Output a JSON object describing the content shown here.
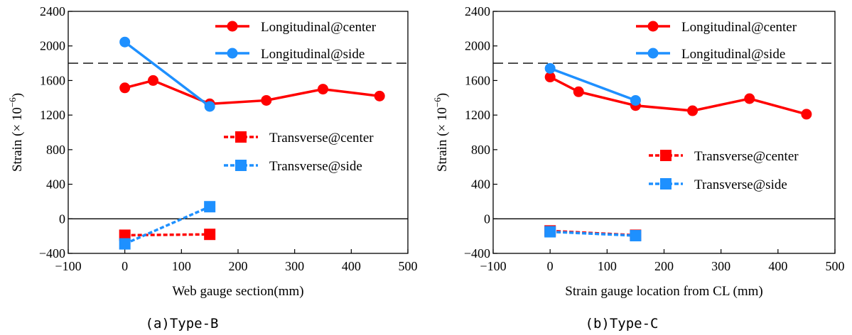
{
  "chart_data": [
    {
      "type": "line",
      "caption": "(a)Type-B",
      "xlabel": "Web gauge section(mm)",
      "ylabel": "Strain (× 10",
      "ylabel_exp": "−6",
      "ylabel_close": ")",
      "xlim": [
        -100,
        500
      ],
      "ylim": [
        -400,
        2400
      ],
      "xticks": [
        -100,
        0,
        100,
        200,
        300,
        400,
        500
      ],
      "yticks": [
        -400,
        0,
        400,
        800,
        1200,
        1600,
        2000,
        2400
      ],
      "xtick_labels": [
        "−100",
        "0",
        "100",
        "200",
        "300",
        "400",
        "500"
      ],
      "ytick_labels": [
        "−400",
        "0",
        "400",
        "800",
        "1200",
        "1600",
        "2000",
        "2400"
      ],
      "reference_lines": [
        {
          "y": 1800,
          "style": "dashed"
        },
        {
          "y": 0,
          "style": "solid"
        }
      ],
      "series": [
        {
          "name": "Longitudinal@center",
          "x": [
            0,
            50,
            150,
            250,
            350,
            450
          ],
          "y": [
            1515,
            1600,
            1330,
            1370,
            1500,
            1420
          ],
          "color": "#ff0000",
          "marker": "circle",
          "line": "solid"
        },
        {
          "name": "Longitudinal@side",
          "x": [
            0,
            150
          ],
          "y": [
            2045,
            1300
          ],
          "color": "#1e90ff",
          "marker": "circle",
          "line": "solid"
        },
        {
          "name": "Transverse@center",
          "x": [
            0,
            150
          ],
          "y": [
            -190,
            -180
          ],
          "color": "#ff0000",
          "marker": "square",
          "line": "dashed"
        },
        {
          "name": "Transverse@side",
          "x": [
            0,
            150
          ],
          "y": [
            -290,
            140
          ],
          "color": "#1e90ff",
          "marker": "square",
          "line": "dashed"
        }
      ],
      "legend_groups": [
        {
          "placement": "top-right",
          "items": [
            0,
            1
          ]
        },
        {
          "placement": "center-right",
          "items": [
            2,
            3
          ]
        }
      ]
    },
    {
      "type": "line",
      "caption": "(b)Type-C",
      "xlabel": "Strain gauge location from CL (mm)",
      "ylabel": "Strain (× 10",
      "ylabel_exp": "−6",
      "ylabel_close": ")",
      "xlim": [
        -100,
        500
      ],
      "ylim": [
        -400,
        2400
      ],
      "xticks": [
        -100,
        0,
        100,
        200,
        300,
        400,
        500
      ],
      "yticks": [
        -400,
        0,
        400,
        800,
        1200,
        1600,
        2000,
        2400
      ],
      "xtick_labels": [
        "−100",
        "0",
        "100",
        "200",
        "300",
        "400",
        "500"
      ],
      "ytick_labels": [
        "−400",
        "0",
        "400",
        "800",
        "1200",
        "1600",
        "2000",
        "2400"
      ],
      "reference_lines": [
        {
          "y": 1800,
          "style": "dashed"
        },
        {
          "y": 0,
          "style": "solid"
        }
      ],
      "series": [
        {
          "name": "Longitudinal@center",
          "x": [
            0,
            50,
            150,
            250,
            350,
            450
          ],
          "y": [
            1640,
            1470,
            1310,
            1250,
            1390,
            1210
          ],
          "color": "#ff0000",
          "marker": "circle",
          "line": "solid"
        },
        {
          "name": "Longitudinal@side",
          "x": [
            0,
            150
          ],
          "y": [
            1740,
            1370
          ],
          "color": "#1e90ff",
          "marker": "circle",
          "line": "solid"
        },
        {
          "name": "Transverse@center",
          "x": [
            0,
            150
          ],
          "y": [
            -140,
            -190
          ],
          "color": "#ff0000",
          "marker": "square",
          "line": "dashed"
        },
        {
          "name": "Transverse@side",
          "x": [
            0,
            150
          ],
          "y": [
            -150,
            -195
          ],
          "color": "#1e90ff",
          "marker": "square",
          "line": "dashed"
        }
      ],
      "legend_groups": [
        {
          "placement": "top-right",
          "items": [
            0,
            1
          ]
        },
        {
          "placement": "center-right",
          "items": [
            2,
            3
          ]
        }
      ]
    }
  ]
}
